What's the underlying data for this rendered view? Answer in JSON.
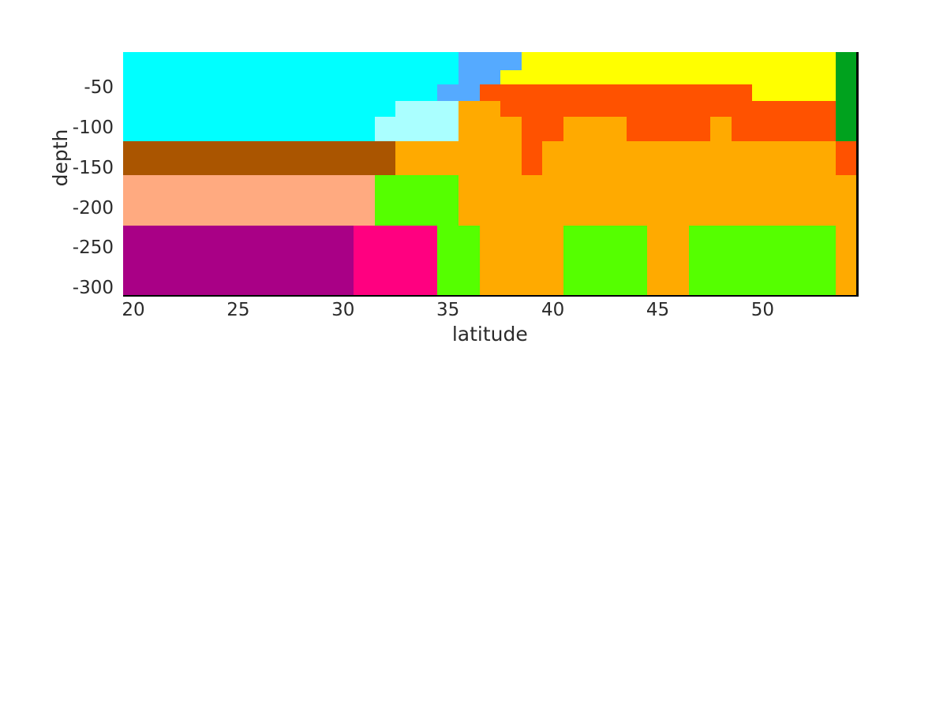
{
  "figure": {
    "background": "#FFFFFF",
    "axis_text_color": "#2B2B2B",
    "spine_color": "#000000"
  },
  "axes": {
    "xlabel": "latitude",
    "ylabel": "depth",
    "x_ticks": [
      {
        "label": "20",
        "value": 20
      },
      {
        "label": "25",
        "value": 25
      },
      {
        "label": "30",
        "value": 30
      },
      {
        "label": "35",
        "value": 35
      },
      {
        "label": "40",
        "value": 40
      },
      {
        "label": "45",
        "value": 45
      },
      {
        "label": "50",
        "value": 50
      }
    ],
    "y_ticks": [
      {
        "label": "-50",
        "value": -50
      },
      {
        "label": "-100",
        "value": -100
      },
      {
        "label": "-150",
        "value": -150
      },
      {
        "label": "-200",
        "value": -200
      },
      {
        "label": "-250",
        "value": -250
      },
      {
        "label": "-300",
        "value": -300
      }
    ]
  },
  "chart_data": {
    "type": "heatmap",
    "title": "",
    "xlabel": "latitude",
    "ylabel": "depth",
    "xlim": [
      19.5,
      54.5
    ],
    "ylim_top": -4.8,
    "ylim_bottom": -308.4,
    "grid": false,
    "legend": "none",
    "x_values": [
      20,
      21,
      22,
      23,
      24,
      25,
      26,
      27,
      28,
      29,
      30,
      31,
      32,
      33,
      34,
      35,
      36,
      37,
      38,
      39,
      40,
      41,
      42,
      43,
      44,
      45,
      46,
      47,
      48,
      49,
      50,
      51,
      52,
      53,
      54
    ],
    "depth_edges": [
      -4.8,
      -28,
      -46,
      -66,
      -86,
      -117,
      -159,
      -222,
      -308.4
    ],
    "palette": {
      "cyan": "#00FFFF",
      "pale_cyan": "#AAFFFF",
      "blue": "#55AAFF",
      "yellow": "#FFFF00",
      "orange_red": "#FF5200",
      "orange": "#FFAA00",
      "dark_green": "#00A21E",
      "green": "#55FF00",
      "brown": "#AA5500",
      "salmon": "#FFAA80",
      "purple": "#A90086",
      "pink": "#FF0080"
    },
    "rows": [
      {
        "depth_range": [
          -4.8,
          -28
        ],
        "runs": [
          [
            "cyan",
            16
          ],
          [
            "blue",
            3
          ],
          [
            "yellow",
            15
          ],
          [
            "dark_green",
            1
          ]
        ]
      },
      {
        "depth_range": [
          -28,
          -46
        ],
        "runs": [
          [
            "cyan",
            16
          ],
          [
            "blue",
            2
          ],
          [
            "yellow",
            16
          ],
          [
            "dark_green",
            1
          ]
        ]
      },
      {
        "depth_range": [
          -46,
          -66
        ],
        "runs": [
          [
            "cyan",
            15
          ],
          [
            "blue",
            2
          ],
          [
            "orange_red",
            13
          ],
          [
            "yellow",
            4
          ],
          [
            "dark_green",
            1
          ]
        ]
      },
      {
        "depth_range": [
          -66,
          -86
        ],
        "runs": [
          [
            "cyan",
            13
          ],
          [
            "pale_cyan",
            3
          ],
          [
            "orange",
            2
          ],
          [
            "orange_red",
            16
          ],
          [
            "dark_green",
            1
          ]
        ]
      },
      {
        "depth_range": [
          -86,
          -117
        ],
        "runs": [
          [
            "cyan",
            12
          ],
          [
            "pale_cyan",
            4
          ],
          [
            "orange",
            3
          ],
          [
            "orange_red",
            2
          ],
          [
            "orange",
            3
          ],
          [
            "orange_red",
            4
          ],
          [
            "orange",
            1
          ],
          [
            "orange_red",
            5
          ],
          [
            "dark_green",
            1
          ]
        ]
      },
      {
        "depth_range": [
          -117,
          -159
        ],
        "runs": [
          [
            "brown",
            13
          ],
          [
            "orange",
            6
          ],
          [
            "orange_red",
            1
          ],
          [
            "orange",
            14
          ],
          [
            "orange_red",
            1
          ]
        ]
      },
      {
        "depth_range": [
          -159,
          -222
        ],
        "runs": [
          [
            "salmon",
            12
          ],
          [
            "green",
            4
          ],
          [
            "orange",
            19
          ]
        ]
      },
      {
        "depth_range": [
          -222,
          -308.4
        ],
        "runs": [
          [
            "purple",
            11
          ],
          [
            "pink",
            4
          ],
          [
            "green",
            2
          ],
          [
            "orange",
            4
          ],
          [
            "green",
            4
          ],
          [
            "orange",
            2
          ],
          [
            "green",
            7
          ],
          [
            "orange",
            1
          ]
        ]
      }
    ]
  }
}
